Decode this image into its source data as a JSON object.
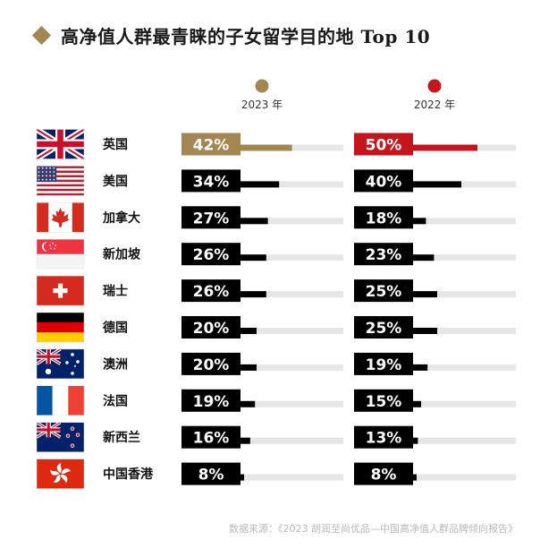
{
  "title": "高净值人群最青睐的子女留学目的地 Top 10",
  "source": "数据来源：《2023 胡润至尚优品—中国高净值人群品牌倾向报告》",
  "chart_data": {
    "type": "bar",
    "title": "高净值人群最青睐的子女留学目的地 Top 10",
    "categories": [
      "英国",
      "美国",
      "加拿大",
      "新加坡",
      "瑞士",
      "德国",
      "澳洲",
      "法国",
      "新西兰",
      "中国香港"
    ],
    "series": [
      {
        "name": "2023 年",
        "values": [
          42,
          34,
          27,
          26,
          26,
          20,
          20,
          19,
          16,
          8
        ],
        "labels": [
          "42%",
          "34%",
          "27%",
          "26%",
          "26%",
          "20%",
          "20%",
          "19%",
          "16%",
          "8%"
        ],
        "highlight_color": "#a38652"
      },
      {
        "name": "2022 年",
        "values": [
          50,
          40,
          18,
          23,
          25,
          25,
          19,
          15,
          13,
          8
        ],
        "labels": [
          "50%",
          "40%",
          "18%",
          "23%",
          "25%",
          "25%",
          "19%",
          "15%",
          "13%",
          "8%"
        ],
        "highlight_color": "#c4161c"
      }
    ],
    "value_max": 100,
    "bar_color": "#000000",
    "track_color": "#e6e6e6",
    "legend_placement": "top",
    "grid": false,
    "flag_icons": [
      "uk-flag-icon",
      "usa-flag-icon",
      "canada-flag-icon",
      "singapore-flag-icon",
      "switzerland-flag-icon",
      "germany-flag-icon",
      "australia-flag-icon",
      "france-flag-icon",
      "new-zealand-flag-icon",
      "hong-kong-flag-icon"
    ]
  }
}
